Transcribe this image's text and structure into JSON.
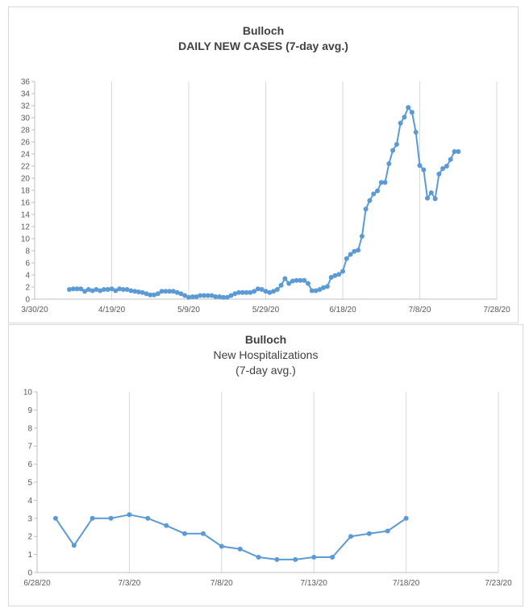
{
  "chart_data": [
    {
      "type": "line",
      "title": "Bulloch",
      "subtitle": "DAILY NEW CASES (7-day avg.)",
      "x_ticks": [
        "3/30/20",
        "4/19/20",
        "5/9/20",
        "5/29/20",
        "6/18/20",
        "7/8/20",
        "7/28/20"
      ],
      "y_ticks": [
        "0",
        "2",
        "4",
        "6",
        "8",
        "10",
        "12",
        "14",
        "16",
        "18",
        "20",
        "22",
        "24",
        "26",
        "28",
        "30",
        "32",
        "34",
        "36"
      ],
      "xlim": [
        "2020-03-30",
        "2020-07-28"
      ],
      "ylim": [
        0,
        36
      ],
      "grid": "vertical",
      "series": [
        {
          "marker": "circle",
          "color": "#5b9bd5",
          "x": [
            "2020-04-08",
            "2020-04-09",
            "2020-04-10",
            "2020-04-11",
            "2020-04-12",
            "2020-04-13",
            "2020-04-14",
            "2020-04-15",
            "2020-04-16",
            "2020-04-17",
            "2020-04-18",
            "2020-04-19",
            "2020-04-20",
            "2020-04-21",
            "2020-04-22",
            "2020-04-23",
            "2020-04-24",
            "2020-04-25",
            "2020-04-26",
            "2020-04-27",
            "2020-04-28",
            "2020-04-29",
            "2020-04-30",
            "2020-05-01",
            "2020-05-02",
            "2020-05-03",
            "2020-05-04",
            "2020-05-05",
            "2020-05-06",
            "2020-05-07",
            "2020-05-08",
            "2020-05-09",
            "2020-05-10",
            "2020-05-11",
            "2020-05-12",
            "2020-05-13",
            "2020-05-14",
            "2020-05-15",
            "2020-05-16",
            "2020-05-17",
            "2020-05-18",
            "2020-05-19",
            "2020-05-20",
            "2020-05-21",
            "2020-05-22",
            "2020-05-23",
            "2020-05-24",
            "2020-05-25",
            "2020-05-26",
            "2020-05-27",
            "2020-05-28",
            "2020-05-29",
            "2020-05-30",
            "2020-05-31",
            "2020-06-01",
            "2020-06-02",
            "2020-06-03",
            "2020-06-04",
            "2020-06-05",
            "2020-06-06",
            "2020-06-07",
            "2020-06-08",
            "2020-06-09",
            "2020-06-10",
            "2020-06-11",
            "2020-06-12",
            "2020-06-13",
            "2020-06-14",
            "2020-06-15",
            "2020-06-16",
            "2020-06-17",
            "2020-06-18",
            "2020-06-19",
            "2020-06-20",
            "2020-06-21",
            "2020-06-22",
            "2020-06-23",
            "2020-06-24",
            "2020-06-25",
            "2020-06-26",
            "2020-06-27",
            "2020-06-28",
            "2020-06-29",
            "2020-06-30",
            "2020-07-01",
            "2020-07-02",
            "2020-07-03",
            "2020-07-04",
            "2020-07-05",
            "2020-07-06",
            "2020-07-07",
            "2020-07-08",
            "2020-07-09",
            "2020-07-10",
            "2020-07-11",
            "2020-07-12",
            "2020-07-13",
            "2020-07-14",
            "2020-07-15",
            "2020-07-16",
            "2020-07-17",
            "2020-07-18"
          ],
          "y": [
            1.6,
            1.7,
            1.7,
            1.7,
            1.3,
            1.6,
            1.4,
            1.6,
            1.4,
            1.6,
            1.6,
            1.7,
            1.4,
            1.7,
            1.6,
            1.6,
            1.4,
            1.3,
            1.2,
            1.1,
            0.9,
            0.7,
            0.7,
            0.9,
            1.3,
            1.3,
            1.3,
            1.3,
            1.1,
            0.9,
            0.6,
            0.3,
            0.4,
            0.4,
            0.6,
            0.6,
            0.6,
            0.6,
            0.4,
            0.4,
            0.3,
            0.3,
            0.6,
            0.9,
            1.1,
            1.1,
            1.1,
            1.1,
            1.3,
            1.7,
            1.6,
            1.3,
            1.1,
            1.3,
            1.6,
            2.3,
            3.4,
            2.6,
            3.0,
            3.1,
            3.1,
            3.1,
            2.6,
            1.4,
            1.4,
            1.6,
            1.9,
            2.1,
            3.6,
            3.9,
            4.1,
            4.6,
            6.7,
            7.4,
            7.9,
            8.1,
            10.4,
            14.9,
            16.3,
            17.4,
            17.9,
            19.3,
            19.3,
            22.4,
            24.6,
            25.6,
            29.1,
            30.1,
            31.7,
            30.9,
            27.6,
            22.1,
            21.4,
            16.7,
            17.6,
            16.6,
            20.7,
            21.6,
            22.0,
            23.1,
            24.4,
            24.4
          ]
        }
      ]
    },
    {
      "type": "line",
      "title": "Bulloch",
      "subtitle": "New Hospitalizations",
      "subtitle2": "(7-day avg.)",
      "x_ticks": [
        "6/28/20",
        "7/3/20",
        "7/8/20",
        "7/13/20",
        "7/18/20",
        "7/23/20"
      ],
      "y_ticks": [
        "0",
        "1",
        "2",
        "3",
        "4",
        "5",
        "6",
        "7",
        "8",
        "9",
        "10"
      ],
      "xlim": [
        "2020-06-28",
        "2020-07-23"
      ],
      "ylim": [
        0,
        10
      ],
      "grid": "vertical",
      "series": [
        {
          "marker": "circle",
          "color": "#5b9bd5",
          "x": [
            "2020-06-29",
            "2020-06-30",
            "2020-07-01",
            "2020-07-02",
            "2020-07-03",
            "2020-07-04",
            "2020-07-05",
            "2020-07-06",
            "2020-07-07",
            "2020-07-08",
            "2020-07-09",
            "2020-07-10",
            "2020-07-11",
            "2020-07-12",
            "2020-07-13",
            "2020-07-14",
            "2020-07-15",
            "2020-07-16",
            "2020-07-17",
            "2020-07-18"
          ],
          "y": [
            3.0,
            1.5,
            3.0,
            3.0,
            3.2,
            3.0,
            2.6,
            2.15,
            2.15,
            1.45,
            1.3,
            0.85,
            0.72,
            0.72,
            0.85,
            0.85,
            2.0,
            2.15,
            2.3,
            3.0
          ]
        }
      ]
    }
  ]
}
